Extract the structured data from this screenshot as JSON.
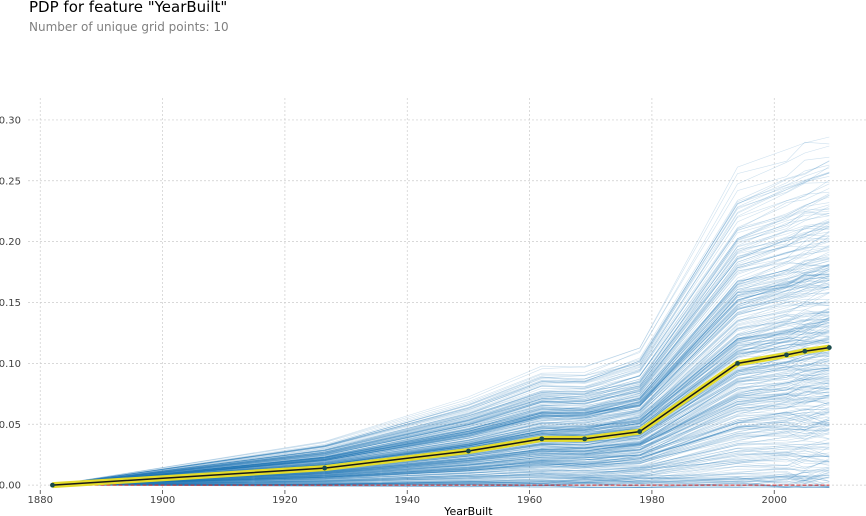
{
  "header": {
    "title": "PDP for feature \"YearBuilt\"",
    "subtitle": "Number of unique grid points: 10"
  },
  "chart_data": {
    "type": "line",
    "title": "PDP for feature \"YearBuilt\"",
    "subtitle": "Number of unique grid points: 10",
    "xlabel": "YearBuilt",
    "ylabel": "",
    "xlim": [
      1878,
      2015
    ],
    "ylim": [
      -0.004,
      0.318
    ],
    "x_ticks": [
      "1880",
      "1900",
      "1920",
      "1940",
      "1960",
      "1980",
      "2000"
    ],
    "y_ticks": [
      "0.00",
      "0.05",
      "0.10",
      "0.15",
      "0.20",
      "0.25",
      "0.30"
    ],
    "grid": true,
    "grid_points": [
      1882,
      1926.5,
      1950,
      1962,
      1969,
      1978,
      1994,
      2002,
      2005,
      2009
    ],
    "pdp": {
      "values": [
        0.0,
        0.014,
        0.028,
        0.038,
        0.038,
        0.044,
        0.1,
        0.107,
        0.11,
        0.113
      ],
      "line_color": "#1a1a1a",
      "band_color": "#e5dc2a",
      "marker_color": "#1a4a4a"
    },
    "ice_lines": {
      "count": 400,
      "color": "#1f77b4",
      "min_final": 0.0,
      "max_final": 0.286
    },
    "baseline": {
      "value": 0.0,
      "color": "#d62728"
    }
  }
}
